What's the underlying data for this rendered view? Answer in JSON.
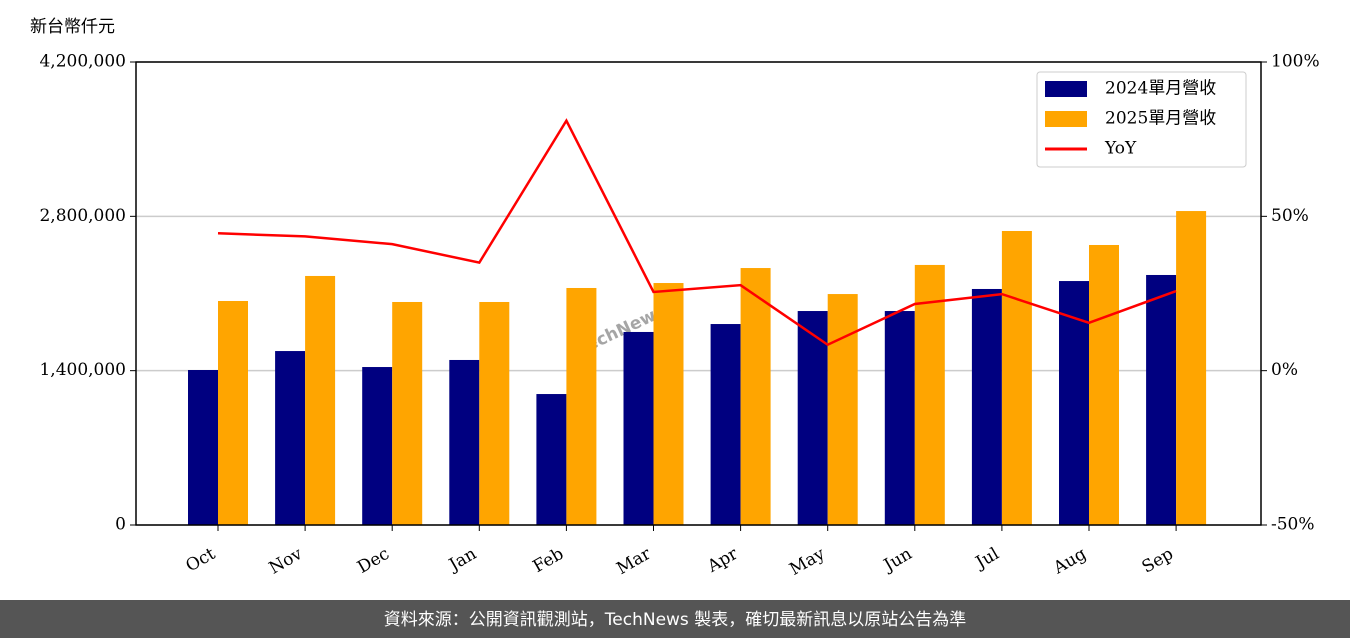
{
  "chart_data": {
    "type": "bar",
    "ylabel": "新台幣仟元",
    "categories": [
      "Oct",
      "Nov",
      "Dec",
      "Jan",
      "Feb",
      "Mar",
      "Apr",
      "May",
      "Jun",
      "Jul",
      "Aug",
      "Sep"
    ],
    "series": [
      {
        "name": "2024單月營收",
        "color": "#000080",
        "type": "bar",
        "values": [
          1406000,
          1578000,
          1433000,
          1497000,
          1188000,
          1751000,
          1823000,
          1941000,
          1941000,
          2141000,
          2213000,
          2268000
        ]
      },
      {
        "name": "2025單月營收",
        "color": "#ffa500",
        "type": "bar",
        "values": [
          2032000,
          2259000,
          2023000,
          2023000,
          2150000,
          2195000,
          2331000,
          2095000,
          2359000,
          2667000,
          2540000,
          2848000
        ]
      },
      {
        "name": "YoY",
        "color": "#ff0000",
        "type": "line",
        "axis": "y2",
        "values": [
          44.5,
          43.5,
          41,
          35,
          81,
          25.5,
          27.7,
          8.4,
          21.6,
          24.8,
          15.5,
          25.8
        ]
      }
    ],
    "ylim": [
      0,
      4200000
    ],
    "yticks": [
      0,
      {
        "value": 1400000,
        "label": "1,400,000"
      },
      {
        "value": 2800000,
        "label": "2,800,000"
      },
      {
        "value": 4200000,
        "label": "4,200,000"
      }
    ],
    "y2lim": [
      -50,
      100
    ],
    "y2ticks": [
      {
        "value": -50,
        "label": "-50%"
      },
      {
        "value": 0,
        "label": "0%"
      },
      {
        "value": 50,
        "label": "50%"
      },
      {
        "value": 100,
        "label": "100%"
      }
    ],
    "grid": true,
    "legend": "upper right",
    "watermark": "TechNews",
    "source": "資料來源：公開資訊觀測站，TechNews 製表，確切最新訊息以原站公告為準"
  }
}
